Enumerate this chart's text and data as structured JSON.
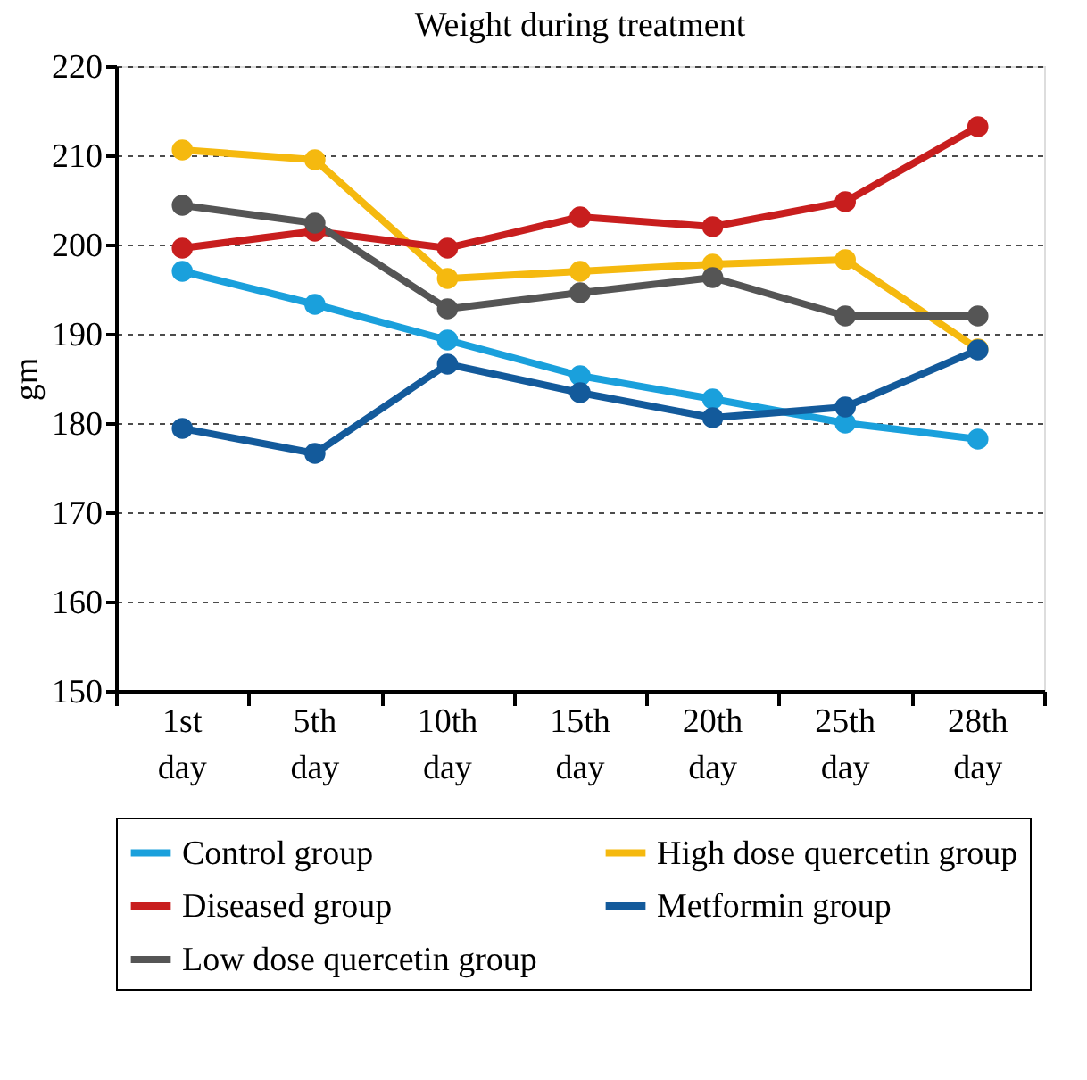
{
  "chart_data": {
    "type": "line",
    "title": "Weight during treatment",
    "ylabel": "gm",
    "categories": [
      "1st day",
      "5th day",
      "10th day",
      "15th day",
      "20th day",
      "25th day",
      "28th day"
    ],
    "series": [
      {
        "name": "Control group",
        "color": "#1aa0dc",
        "values": [
          197,
          193.3,
          189.3,
          185.3,
          182.7,
          180,
          178.2
        ]
      },
      {
        "name": "High dose quercetin group",
        "color": "#f5b90f",
        "values": [
          210.6,
          209.5,
          196.2,
          197,
          197.8,
          198.3,
          188.3
        ]
      },
      {
        "name": "Diseased group",
        "color": "#c81e1e",
        "values": [
          199.6,
          201.5,
          199.6,
          203.1,
          202,
          204.8,
          213.2
        ]
      },
      {
        "name": "Metformin group",
        "color": "#135a9b",
        "values": [
          179.4,
          176.6,
          186.6,
          183.4,
          180.6,
          181.8,
          188.2
        ]
      },
      {
        "name": "Low dose quercetin group",
        "color": "#555555",
        "values": [
          204.4,
          202.4,
          192.8,
          194.6,
          196.3,
          192,
          192
        ]
      }
    ],
    "ylim": [
      150,
      220
    ],
    "yticks": [
      150,
      160,
      170,
      180,
      190,
      200,
      210,
      220
    ],
    "grid": "y",
    "legend": "bottom",
    "marker": "circle",
    "line_style": "solid"
  }
}
